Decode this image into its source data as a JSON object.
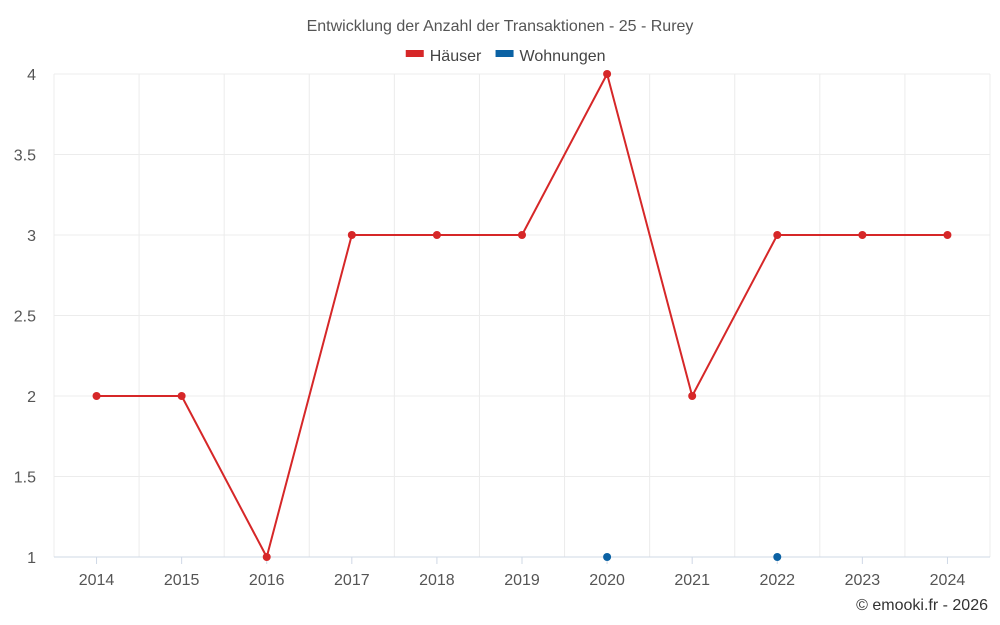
{
  "chart_data": {
    "type": "line",
    "title": "Entwicklung der Anzahl der Transaktionen - 25 - Rurey",
    "categories": [
      "2014",
      "2015",
      "2016",
      "2017",
      "2018",
      "2019",
      "2020",
      "2021",
      "2022",
      "2023",
      "2024"
    ],
    "series": [
      {
        "name": "Häuser",
        "color": "#d62728",
        "values": [
          2,
          2,
          1,
          3,
          3,
          3,
          4,
          2,
          3,
          3,
          3
        ]
      },
      {
        "name": "Wohnungen",
        "color": "#0b62a4",
        "values": [
          null,
          null,
          null,
          null,
          null,
          null,
          1,
          null,
          1,
          null,
          null
        ]
      }
    ],
    "yticks": [
      "1",
      "1.5",
      "2",
      "2.5",
      "3",
      "3.5",
      "4"
    ],
    "ylim": [
      1,
      4
    ],
    "grid": true,
    "legend": "top-center"
  },
  "credit": "© emooki.fr - 2026"
}
